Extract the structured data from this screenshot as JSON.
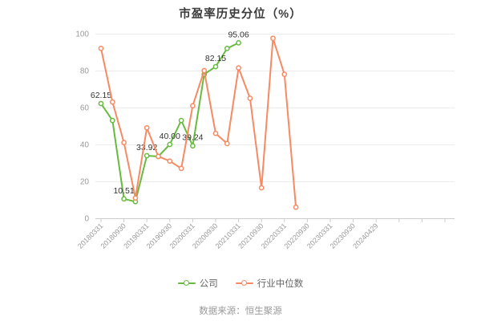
{
  "title": "市盈率历史分位（%）",
  "chart_data": {
    "type": "line",
    "title": "市盈率历史分位（%）",
    "ylabel": "",
    "xlabel": "",
    "ylim": [
      0,
      100
    ],
    "y_ticks": [
      0,
      20,
      40,
      60,
      80,
      100
    ],
    "grid": true,
    "legend_position": "bottom",
    "x_tick_labels": [
      "20180331",
      "20180930",
      "20190331",
      "20190930",
      "20200331",
      "20200930",
      "20210331",
      "20210930",
      "20220331",
      "20220930",
      "20230331",
      "20230930",
      "20240429"
    ],
    "points_per_tick_interval": 2,
    "series": [
      {
        "name": "公司",
        "color": "#67bb3f",
        "values": [
          62.15,
          53,
          10.51,
          9,
          33.92,
          33.5,
          40,
          53,
          39.24,
          78,
          82.15,
          92,
          95.06
        ],
        "point_labels": {
          "0": "62.15",
          "2": "10.51",
          "4": "33.92",
          "6": "40.00",
          "8": "39.24",
          "10": "82.15",
          "12": "95.06"
        }
      },
      {
        "name": "行业中位数",
        "color": "#f78a63",
        "values": [
          92,
          63,
          41,
          11,
          49,
          33.5,
          31,
          27,
          61,
          80,
          46,
          40.5,
          81.5,
          65,
          16.5,
          97.5,
          78,
          6
        ],
        "point_labels": {}
      }
    ]
  },
  "legend": {
    "items": [
      {
        "label": "公司",
        "color": "#67bb3f"
      },
      {
        "label": "行业中位数",
        "color": "#f78a63"
      }
    ]
  },
  "source": "数据来源：恒生聚源",
  "colors": {
    "title_text": "#3c3c3c",
    "axis_label": "#999999",
    "grid_line": "#ececec",
    "axis_line": "#cccccc",
    "data_label": "#333333",
    "legend_text": "#666666",
    "source_text": "#999999"
  }
}
